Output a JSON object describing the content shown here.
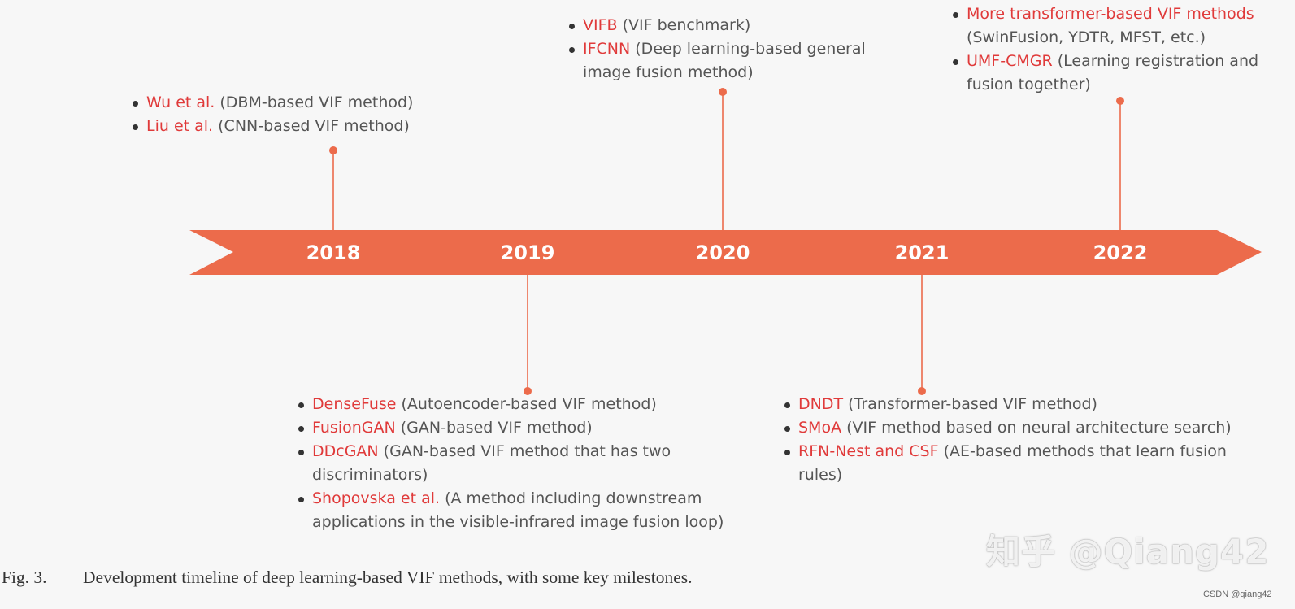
{
  "timeline": {
    "years": [
      "2018",
      "2019",
      "2020",
      "2021",
      "2022"
    ],
    "colors": {
      "arrow": "#ec6b4b",
      "connector": "#ec6b4b",
      "method_name": "#e03a3a",
      "description": "#555555"
    },
    "groups": [
      {
        "year": "2018",
        "side": "above",
        "items": [
          {
            "name": "Wu et al.",
            "desc": " (DBM-based VIF method)"
          },
          {
            "name": "Liu et al.",
            "desc": " (CNN-based VIF method)"
          }
        ]
      },
      {
        "year": "2019",
        "side": "below",
        "items": [
          {
            "name": "DenseFuse",
            "desc": " (Autoencoder-based VIF method)"
          },
          {
            "name": "FusionGAN",
            "desc": " (GAN-based VIF method)"
          },
          {
            "name": "DDcGAN",
            "desc": " (GAN-based VIF method that has two discriminators)"
          },
          {
            "name": "Shopovska et al.",
            "desc": " (A method including downstream applications in the visible-infrared image fusion loop)"
          }
        ]
      },
      {
        "year": "2020",
        "side": "above",
        "items": [
          {
            "name": "VIFB",
            "desc": " (VIF benchmark)"
          },
          {
            "name": "IFCNN",
            "desc": " (Deep learning-based general image fusion method)"
          }
        ]
      },
      {
        "year": "2021",
        "side": "below",
        "items": [
          {
            "name": "DNDT",
            "desc": " (Transformer-based VIF method)"
          },
          {
            "name": "SMoA",
            "desc": " (VIF method based on neural architecture search)"
          },
          {
            "name": "RFN-Nest and CSF",
            "desc": " (AE-based methods that learn fusion rules)"
          }
        ]
      },
      {
        "year": "2022",
        "side": "above",
        "items": [
          {
            "name": "More transformer-based VIF methods",
            "desc": " (SwinFusion, YDTR, MFST, etc.)"
          },
          {
            "name": "UMF-CMGR",
            "desc": " (Learning registration and fusion together)"
          }
        ]
      }
    ]
  },
  "caption": {
    "number": "Fig. 3.",
    "text": "Development timeline of deep learning-based VIF methods, with some key milestones."
  },
  "watermark": "知乎 @Qiang42",
  "credit": "CSDN @qiang42"
}
